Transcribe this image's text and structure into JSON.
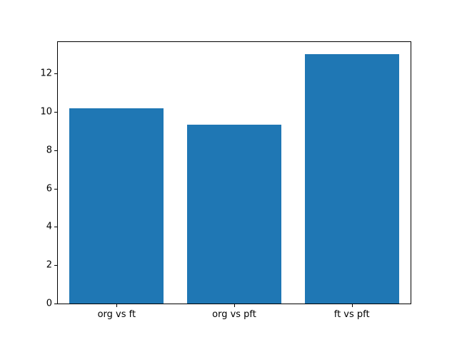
{
  "figure": {
    "background": "#ffffff"
  },
  "chart_data": {
    "type": "bar",
    "categories": [
      "org vs ft",
      "org vs pft",
      "ft vs pft"
    ],
    "values": [
      10.2,
      9.35,
      13.0
    ],
    "title": "",
    "xlabel": "",
    "ylabel": "",
    "ylim": [
      0,
      13.65
    ],
    "yticks": [
      0,
      2,
      4,
      6,
      8,
      10,
      12
    ],
    "bar_color": "#1f77b4",
    "bar_width_fraction": 0.8,
    "grid": false,
    "legend_position": "none",
    "tick_color": "#000000",
    "spine_color": "#000000"
  }
}
